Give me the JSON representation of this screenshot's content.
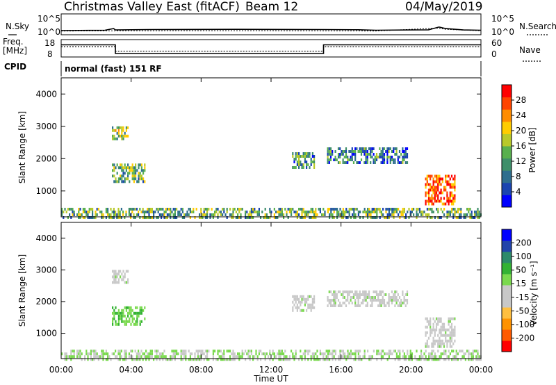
{
  "header": {
    "station": "Christmas Valley East (fitACF)",
    "beam": "Beam 12",
    "date": "04/May/2019"
  },
  "status_panels": {
    "nsky_label": "N.Sky",
    "nsky_ticks": [
      "10^5",
      "10^0"
    ],
    "nsearch_label": "N.Search",
    "nsearch_ticks": [
      "10^5",
      "10^0"
    ],
    "freq_label": "Freq.",
    "freq_unit": "[MHz]",
    "freq_ticks": [
      "18",
      "8"
    ],
    "nave_label": "Nave",
    "nave_ticks": [
      "60",
      "0"
    ],
    "cpid_label": "CPID",
    "cpid_text": "normal (fast) 151 RF"
  },
  "chart_data": [
    {
      "type": "line",
      "panel": "noise",
      "series": [
        {
          "name": "N.Sky",
          "style": "solid",
          "x": [
            0,
            2.5,
            3.0,
            3.1,
            5,
            10,
            15,
            17,
            18,
            20,
            21,
            21.6,
            22,
            23,
            24
          ],
          "values": [
            10,
            12,
            30,
            14,
            18,
            20,
            18,
            16,
            12,
            14,
            15,
            70,
            30,
            14,
            12
          ]
        },
        {
          "name": "N.Search",
          "style": "dotted",
          "x": [
            0,
            6,
            12,
            18,
            21.5,
            22,
            24
          ],
          "values": [
            8,
            9,
            9,
            8,
            40,
            20,
            9
          ]
        }
      ],
      "x_range": [
        0,
        24
      ]
    },
    {
      "type": "line",
      "panel": "frequency",
      "series": [
        {
          "name": "Freq.",
          "style": "solid",
          "x": [
            0,
            3.1,
            3.1,
            15,
            15,
            24
          ],
          "values": [
            15,
            15,
            10,
            10,
            15,
            15
          ],
          "yrange": [
            8,
            18
          ]
        },
        {
          "name": "Nave",
          "style": "dotted",
          "x": [
            0,
            3.1,
            3.1,
            15,
            15,
            24
          ],
          "values": [
            35,
            35,
            20,
            20,
            35,
            35
          ],
          "yrange": [
            0,
            60
          ]
        }
      ],
      "x_range": [
        0,
        24
      ]
    },
    {
      "type": "heatmap",
      "panel": "power",
      "ylabel": "Slant Range [km]",
      "yticks": [
        "4000",
        "3000",
        "2000",
        "1000"
      ],
      "ylim": [
        200,
        4500
      ],
      "xlim": [
        0,
        24
      ],
      "colorbar": {
        "label": "Power [dB]",
        "ticks": [
          "28",
          "24",
          "20",
          "16",
          "12",
          "8",
          "4"
        ],
        "range": [
          0,
          30
        ],
        "colors": [
          "#0000ff",
          "#1a44b0",
          "#2e6e8e",
          "#3f8f6a",
          "#59b04e",
          "#b8c92a",
          "#ffcc00",
          "#ff8c00",
          "#ff4400",
          "#ff0000"
        ]
      },
      "regions": [
        {
          "t0": 2.9,
          "t1": 3.8,
          "r0": 2600,
          "r1": 3000,
          "value": 14
        },
        {
          "t0": 2.9,
          "t1": 4.8,
          "r0": 1300,
          "r1": 1850,
          "value": 13
        },
        {
          "t0": 13.2,
          "t1": 14.5,
          "r0": 1700,
          "r1": 2200,
          "value": 10
        },
        {
          "t0": 15.2,
          "t1": 19.8,
          "r0": 1850,
          "r1": 2350,
          "value": 8
        },
        {
          "t0": 20.8,
          "t1": 22.5,
          "r0": 600,
          "r1": 1500,
          "value": 26
        },
        {
          "t0": 0,
          "t1": 24,
          "r0": 200,
          "r1": 480,
          "value": 12
        }
      ]
    },
    {
      "type": "heatmap",
      "panel": "velocity",
      "ylabel": "Slant Range [km]",
      "yticks": [
        "4000",
        "3000",
        "2000",
        "1000"
      ],
      "ylim": [
        200,
        4500
      ],
      "xlim": [
        0,
        24
      ],
      "colorbar": {
        "label": "Velocity [m s⁻¹]",
        "ticks": [
          "200",
          "100",
          "50",
          "15",
          "-15",
          "-50",
          "-100",
          "-200"
        ],
        "range": [
          -250,
          250
        ],
        "colors": [
          "#ff0000",
          "#ff5a00",
          "#ff9200",
          "#ffbf40",
          "#c8c8c8",
          "#c8c8c8",
          "#7ad94e",
          "#33b233",
          "#2d8a6a",
          "#2244aa",
          "#0000ff"
        ]
      },
      "regions": [
        {
          "t0": 2.9,
          "t1": 3.8,
          "r0": 2600,
          "r1": 3000,
          "value": 0
        },
        {
          "t0": 2.9,
          "t1": 4.8,
          "r0": 1300,
          "r1": 1850,
          "value": 60
        },
        {
          "t0": 13.2,
          "t1": 14.5,
          "r0": 1700,
          "r1": 2200,
          "value": 0
        },
        {
          "t0": 15.2,
          "t1": 19.8,
          "r0": 1850,
          "r1": 2350,
          "value": 0
        },
        {
          "t0": 20.8,
          "t1": 22.5,
          "r0": 600,
          "r1": 1500,
          "value": 0
        },
        {
          "t0": 0,
          "t1": 24,
          "r0": 200,
          "r1": 480,
          "value": 20
        }
      ]
    }
  ],
  "xaxis": {
    "ticks": [
      "00:00",
      "04:00",
      "08:00",
      "12:00",
      "16:00",
      "20:00",
      "00:00"
    ],
    "label": "Time UT"
  }
}
